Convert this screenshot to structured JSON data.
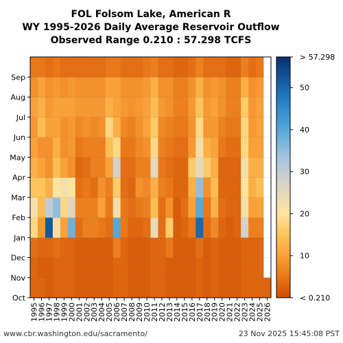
{
  "chart_data": {
    "type": "heatmap",
    "title_lines": [
      "FOL Folsom Lake, American R",
      "WY 1995-2026 Daily Average Reservoir Outflow",
      "Observed Range 0.210 : 57.298 TCFS"
    ],
    "x_categories": [
      "1995",
      "1996",
      "1997",
      "1998",
      "1999",
      "2000",
      "2001",
      "2002",
      "2003",
      "2004",
      "2005",
      "2006",
      "2007",
      "2008",
      "2009",
      "2010",
      "2011",
      "2012",
      "2013",
      "2014",
      "2015",
      "2016",
      "2017",
      "2018",
      "2019",
      "2020",
      "2021",
      "2022",
      "2023",
      "2024",
      "2025",
      "2026"
    ],
    "y_months_bottom_to_top": [
      "Oct",
      "Nov",
      "Dec",
      "Jan",
      "Feb",
      "Mar",
      "Apr",
      "May",
      "Jun",
      "Jul",
      "Aug",
      "Sep"
    ],
    "colorbar": {
      "min": 0,
      "max": 57.298,
      "ticks": [
        10,
        20,
        30,
        40,
        50
      ],
      "top_label": "> 57.298",
      "bottom_label": "< 0.210",
      "stops": [
        {
          "v": 0,
          "c": "#cc4c02"
        },
        {
          "v": 5,
          "c": "#e8781a"
        },
        {
          "v": 10,
          "c": "#f9a13a"
        },
        {
          "v": 15,
          "c": "#fdc45c"
        },
        {
          "v": 20,
          "c": "#ffe49e"
        },
        {
          "v": 27,
          "c": "#d9d4c8"
        },
        {
          "v": 34,
          "c": "#9ec3e0"
        },
        {
          "v": 41,
          "c": "#4aa3d4"
        },
        {
          "v": 48,
          "c": "#1f78c0"
        },
        {
          "v": 57.298,
          "c": "#08306b"
        }
      ]
    },
    "approx_monthly_outflow_tcfs": [
      [
        3,
        3,
        4,
        18,
        22,
        15,
        12,
        10,
        9,
        10,
        8,
        5
      ],
      [
        3,
        2,
        3,
        9,
        14,
        15,
        10,
        8,
        14,
        12,
        10,
        5
      ],
      [
        2,
        2,
        3,
        52,
        30,
        12,
        8,
        8,
        10,
        9,
        8,
        4
      ],
      [
        3,
        3,
        4,
        22,
        35,
        20,
        14,
        12,
        10,
        10,
        9,
        5
      ],
      [
        3,
        3,
        3,
        10,
        18,
        22,
        10,
        8,
        8,
        10,
        8,
        4
      ],
      [
        3,
        3,
        3,
        38,
        26,
        20,
        8,
        9,
        9,
        10,
        9,
        4
      ],
      [
        2,
        2,
        2,
        4,
        6,
        4,
        3,
        5,
        7,
        9,
        8,
        4
      ],
      [
        2,
        2,
        2,
        6,
        6,
        5,
        4,
        6,
        8,
        9,
        8,
        4
      ],
      [
        2,
        2,
        2,
        6,
        6,
        4,
        6,
        6,
        7,
        9,
        8,
        4
      ],
      [
        2,
        2,
        2,
        5,
        10,
        8,
        6,
        6,
        8,
        9,
        8,
        4
      ],
      [
        2,
        2,
        2,
        4,
        5,
        6,
        10,
        14,
        18,
        12,
        10,
        5
      ],
      [
        3,
        3,
        6,
        40,
        22,
        16,
        28,
        18,
        12,
        10,
        10,
        5
      ],
      [
        3,
        3,
        3,
        5,
        5,
        4,
        4,
        5,
        7,
        9,
        8,
        4
      ],
      [
        2,
        2,
        2,
        3,
        4,
        3,
        4,
        5,
        6,
        8,
        8,
        4
      ],
      [
        2,
        2,
        2,
        3,
        5,
        8,
        6,
        7,
        8,
        9,
        8,
        4
      ],
      [
        2,
        2,
        2,
        4,
        6,
        7,
        6,
        8,
        10,
        10,
        9,
        5
      ],
      [
        3,
        3,
        3,
        24,
        14,
        12,
        25,
        18,
        16,
        14,
        12,
        6
      ],
      [
        3,
        3,
        3,
        4,
        4,
        6,
        5,
        6,
        7,
        9,
        8,
        4
      ],
      [
        2,
        2,
        5,
        16,
        8,
        5,
        4,
        5,
        6,
        8,
        8,
        4
      ],
      [
        2,
        2,
        2,
        2,
        2,
        3,
        3,
        4,
        5,
        6,
        6,
        3
      ],
      [
        2,
        2,
        2,
        3,
        4,
        3,
        3,
        4,
        5,
        6,
        6,
        3
      ],
      [
        2,
        2,
        2,
        5,
        10,
        12,
        16,
        9,
        8,
        9,
        8,
        4
      ],
      [
        3,
        3,
        4,
        50,
        40,
        35,
        25,
        22,
        18,
        15,
        12,
        6
      ],
      [
        2,
        2,
        2,
        4,
        5,
        8,
        16,
        12,
        9,
        9,
        8,
        4
      ],
      [
        3,
        3,
        3,
        7,
        12,
        14,
        12,
        10,
        9,
        10,
        9,
        4
      ],
      [
        2,
        2,
        2,
        3,
        4,
        3,
        3,
        5,
        6,
        8,
        8,
        4
      ],
      [
        2,
        2,
        2,
        2,
        3,
        3,
        3,
        4,
        5,
        6,
        6,
        3
      ],
      [
        2,
        2,
        2,
        3,
        3,
        3,
        3,
        4,
        5,
        6,
        6,
        3
      ],
      [
        3,
        3,
        3,
        28,
        22,
        20,
        22,
        18,
        18,
        16,
        12,
        6
      ],
      [
        3,
        3,
        3,
        6,
        10,
        12,
        12,
        10,
        9,
        9,
        8,
        4
      ],
      [
        3,
        3,
        3,
        6,
        10,
        14,
        12,
        10,
        10,
        10,
        9,
        5
      ],
      [
        3,
        null,
        null,
        null,
        null,
        null,
        null,
        null,
        null,
        null,
        null,
        null
      ]
    ]
  },
  "footer": {
    "source_url": "www.cbr.washington.edu/sacramento/",
    "timestamp": "23 Nov 2025 15:45:08 PST"
  }
}
